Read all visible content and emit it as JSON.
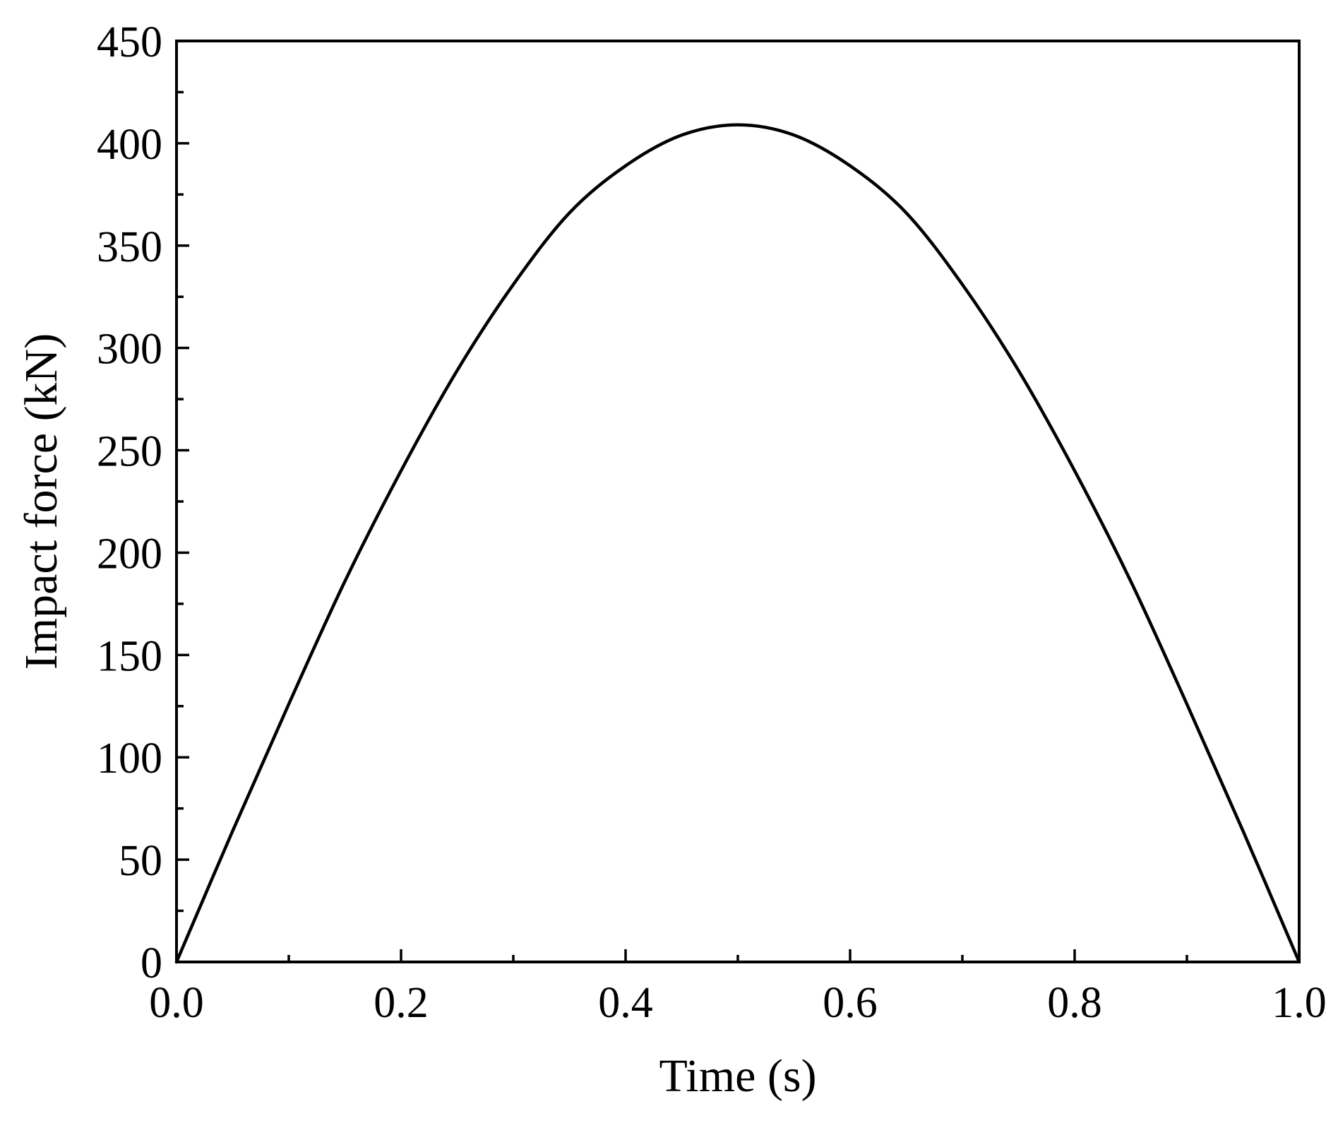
{
  "chart_data": {
    "type": "line",
    "title": "",
    "xlabel": "Time (s)",
    "ylabel": "Impact force (kN)",
    "xlim": [
      0.0,
      1.0
    ],
    "ylim": [
      0,
      450
    ],
    "x_ticks": [
      0.0,
      0.2,
      0.4,
      0.6,
      0.8,
      1.0
    ],
    "x_tick_labels": [
      "0.0",
      "0.2",
      "0.4",
      "0.6",
      "0.8",
      "1.0"
    ],
    "x_minor_ticks": [
      0.1,
      0.3,
      0.5,
      0.7,
      0.9
    ],
    "y_ticks": [
      0,
      50,
      100,
      150,
      200,
      250,
      300,
      350,
      400,
      450
    ],
    "y_tick_labels": [
      "0",
      "50",
      "100",
      "150",
      "200",
      "250",
      "300",
      "350",
      "400",
      "450"
    ],
    "y_minor_ticks": [
      25,
      75,
      125,
      175,
      225,
      275,
      325,
      375,
      425
    ],
    "grid": false,
    "legend": "none",
    "line_color": "#000000",
    "series": [
      {
        "x": [
          0.0,
          0.05,
          0.1,
          0.15,
          0.2,
          0.25,
          0.3,
          0.35,
          0.4,
          0.45,
          0.5,
          0.55,
          0.6,
          0.65,
          0.7,
          0.75,
          0.8,
          0.85,
          0.9,
          0.95,
          1.0
        ],
        "values": [
          0,
          64,
          126,
          186,
          240,
          289,
          331,
          366,
          389,
          404,
          409,
          404,
          389,
          366,
          331,
          289,
          240,
          186,
          126,
          64,
          0
        ]
      }
    ]
  }
}
